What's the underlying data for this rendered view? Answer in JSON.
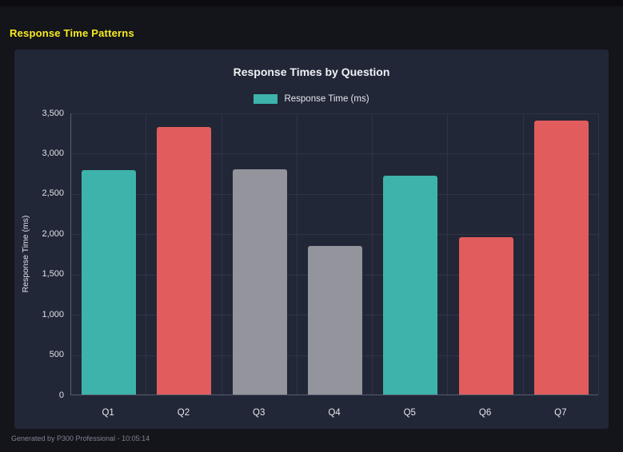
{
  "header": {
    "title": "Response Time Patterns"
  },
  "footer": {
    "text": "Generated by P300 Professional - 10:05:14"
  },
  "colors": {
    "page_bg": "#14141b",
    "panel_bg": "#212737",
    "title_yellow": "#f7ec1f",
    "teal": "#3db3ab",
    "red": "#e15c5c",
    "gray": "#94949c"
  },
  "chart_data": {
    "type": "bar",
    "title": "Response Times by Question",
    "legend": [
      "Response Time (ms)"
    ],
    "legend_position": "top",
    "categories": [
      "Q1",
      "Q2",
      "Q3",
      "Q4",
      "Q5",
      "Q6",
      "Q7"
    ],
    "values": [
      2790,
      3320,
      2800,
      1840,
      2720,
      1950,
      3400
    ],
    "bar_colors": [
      "#3db3ab",
      "#e15c5c",
      "#94949c",
      "#94949c",
      "#3db3ab",
      "#e15c5c",
      "#e15c5c"
    ],
    "xlabel": "",
    "ylabel": "Response Time (ms)",
    "ylim": [
      0,
      3500
    ],
    "yticks": [
      0,
      500,
      1000,
      1500,
      2000,
      2500,
      3000,
      3500
    ],
    "ytick_labels": [
      "0",
      "500",
      "1,000",
      "1,500",
      "2,000",
      "2,500",
      "3,000",
      "3,500"
    ],
    "grid": true
  }
}
